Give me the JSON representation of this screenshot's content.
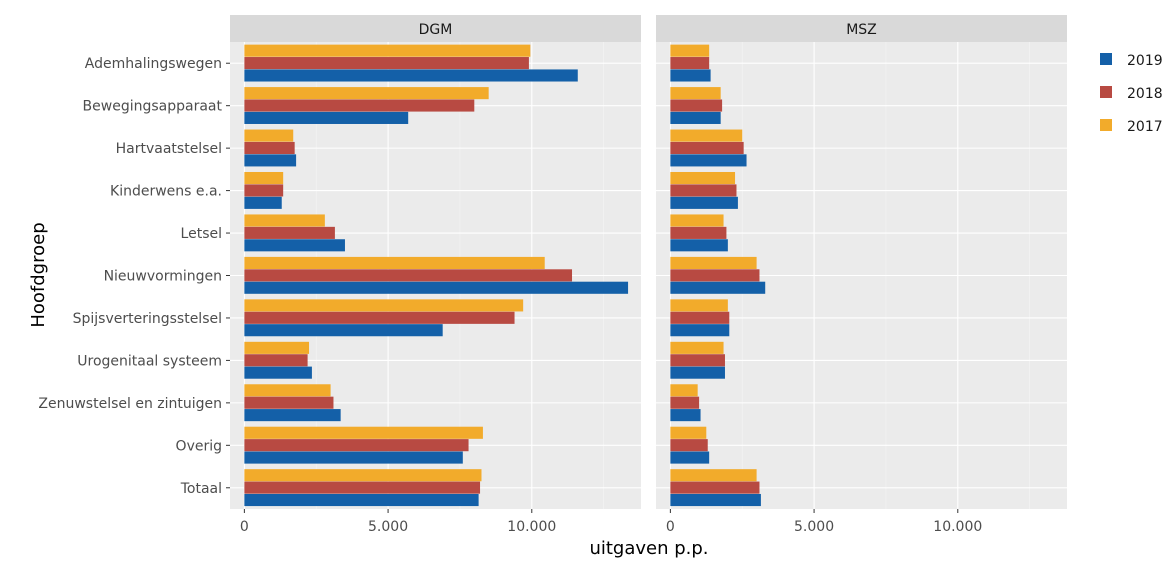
{
  "chart_data": {
    "type": "bar",
    "orientation": "horizontal",
    "xlabel": "uitgaven p.p.",
    "ylabel": "Hoofdgroep",
    "xlim": [
      -500,
      13800
    ],
    "x_ticks": [
      0,
      5000,
      10000
    ],
    "x_tick_labels": [
      "0",
      "5.000",
      "10.000"
    ],
    "grid": true,
    "legend_position": "right",
    "categories": [
      "Ademhalingswegen",
      "Bewegingsapparaat",
      "Hartvaatstelsel",
      "Kinderwens e.a.",
      "Letsel",
      "Nieuwvormingen",
      "Spijsverteringsstelsel",
      "Urogenitaal systeem",
      "Zenuwstelsel en zintuigen",
      "Overig",
      "Totaal"
    ],
    "legend": [
      {
        "name": "2019",
        "color": "#1460a8"
      },
      {
        "name": "2018",
        "color": "#b84a42"
      },
      {
        "name": "2017",
        "color": "#f2ab2b"
      }
    ],
    "panels": [
      {
        "title": "DGM",
        "series": [
          {
            "name": "2017",
            "color": "#f2ab2b",
            "values": [
              9950,
              8500,
              1700,
              1350,
              2800,
              10450,
              9700,
              2250,
              3000,
              8300,
              8250
            ]
          },
          {
            "name": "2018",
            "color": "#b84a42",
            "values": [
              9900,
              8000,
              1750,
              1350,
              3150,
              11400,
              9400,
              2200,
              3100,
              7800,
              8200
            ]
          },
          {
            "name": "2019",
            "color": "#1460a8",
            "values": [
              11600,
              5700,
              1800,
              1300,
              3500,
              13350,
              6900,
              2350,
              3350,
              7600,
              8150
            ]
          }
        ]
      },
      {
        "title": "MSZ",
        "series": [
          {
            "name": "2017",
            "color": "#f2ab2b",
            "values": [
              1350,
              1750,
              2500,
              2250,
              1850,
              3000,
              2000,
              1850,
              950,
              1250,
              3000
            ]
          },
          {
            "name": "2018",
            "color": "#b84a42",
            "values": [
              1350,
              1800,
              2550,
              2300,
              1950,
              3100,
              2050,
              1900,
              1000,
              1300,
              3100
            ]
          },
          {
            "name": "2019",
            "color": "#1460a8",
            "values": [
              1400,
              1750,
              2650,
              2350,
              2000,
              3300,
              2050,
              1900,
              1050,
              1350,
              3150
            ]
          }
        ]
      }
    ]
  }
}
